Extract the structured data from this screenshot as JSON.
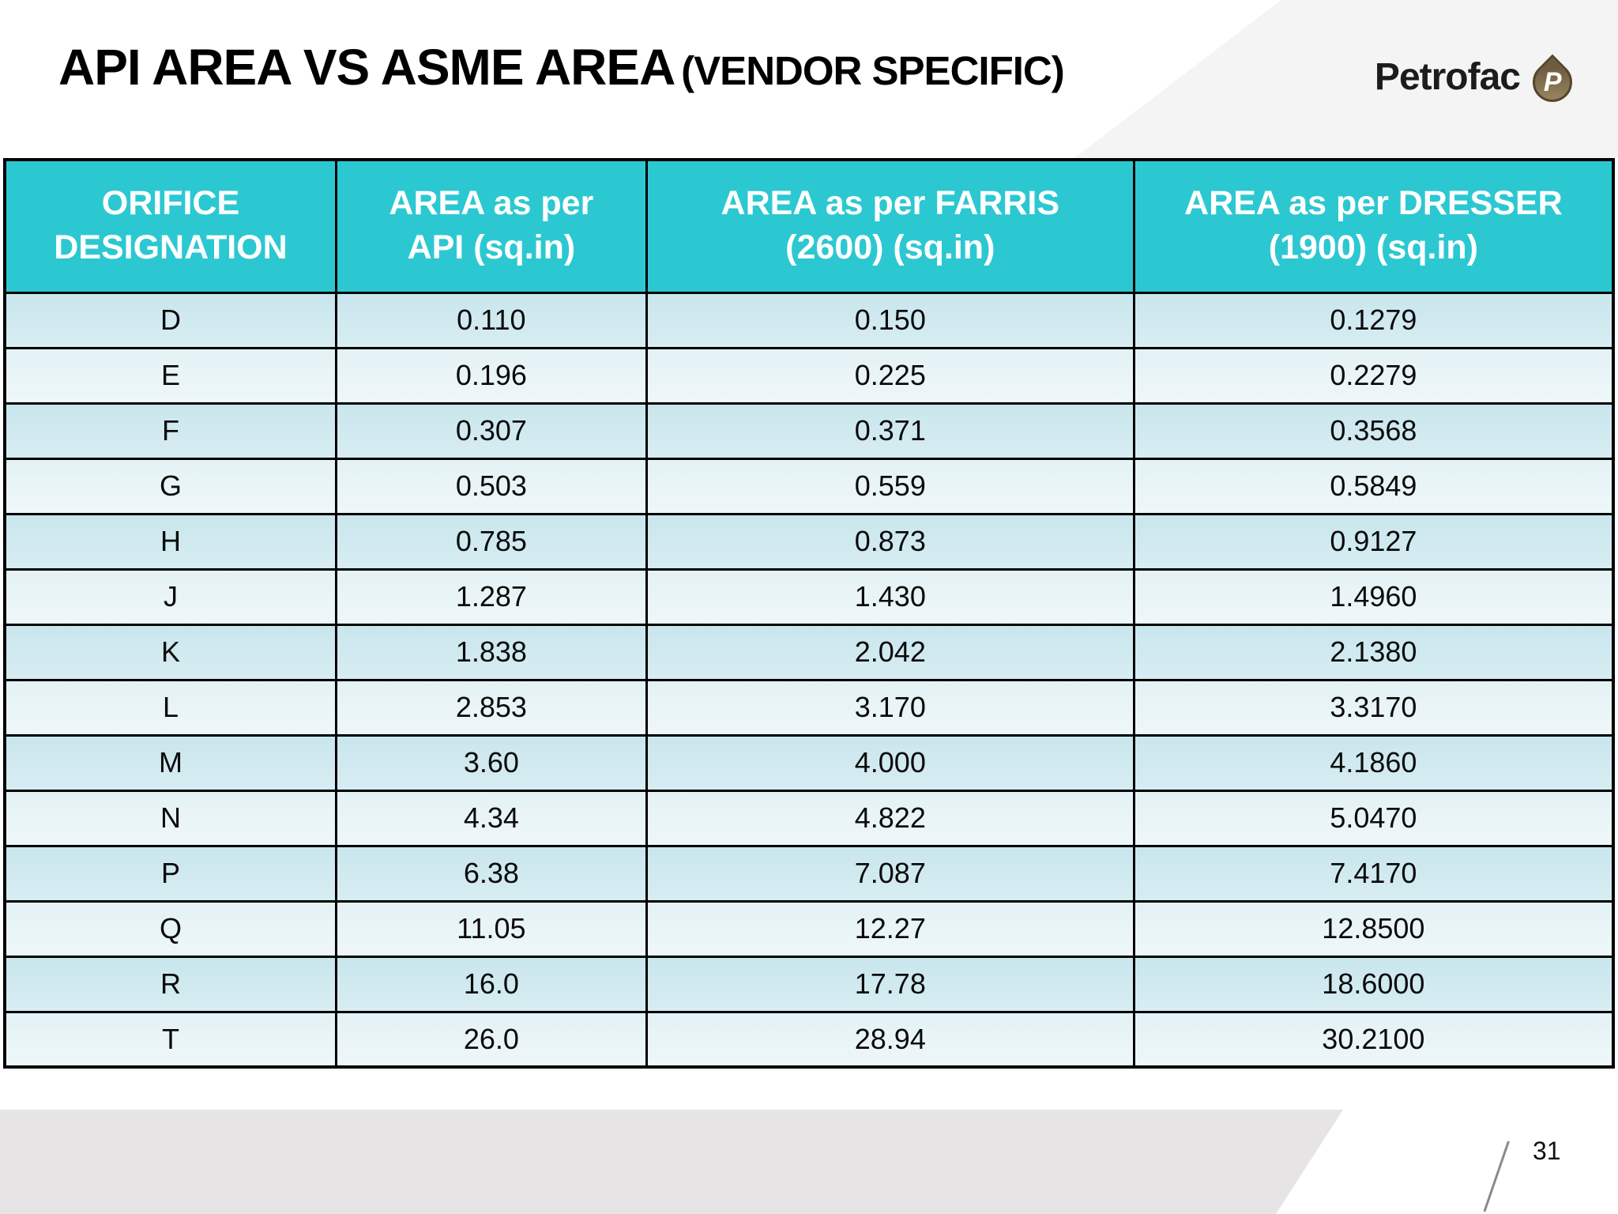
{
  "slide": {
    "title_main": "API AREA VS ASME AREA",
    "title_suffix": "(VENDOR SPECIFIC)",
    "page_number": "31",
    "logo": {
      "text": "Petrofac",
      "droplet_letter": "P"
    }
  },
  "colors": {
    "header_bg": "#2cc8d2",
    "row_dark": "#cde8ee",
    "row_light": "#e9f4f7",
    "border": "#000000",
    "band_gray": "#e6e4e4",
    "wedge_gray": "#f5f4f4",
    "droplet_brown": "#7a684a"
  },
  "table": {
    "headers": [
      [
        "ORIFICE",
        "DESIGNATION"
      ],
      [
        "AREA as per",
        "API (sq.in)"
      ],
      [
        "AREA as per FARRIS",
        "(2600) (sq.in)"
      ],
      [
        "AREA as per DRESSER",
        "(1900) (sq.in)"
      ]
    ],
    "rows": [
      [
        "D",
        "0.110",
        "0.150",
        "0.1279"
      ],
      [
        "E",
        "0.196",
        "0.225",
        "0.2279"
      ],
      [
        "F",
        "0.307",
        "0.371",
        "0.3568"
      ],
      [
        "G",
        "0.503",
        "0.559",
        "0.5849"
      ],
      [
        "H",
        "0.785",
        "0.873",
        "0.9127"
      ],
      [
        "J",
        "1.287",
        "1.430",
        "1.4960"
      ],
      [
        "K",
        "1.838",
        "2.042",
        "2.1380"
      ],
      [
        "L",
        "2.853",
        "3.170",
        "3.3170"
      ],
      [
        "M",
        "3.60",
        "4.000",
        "4.1860"
      ],
      [
        "N",
        "4.34",
        "4.822",
        "5.0470"
      ],
      [
        "P",
        "6.38",
        "7.087",
        "7.4170"
      ],
      [
        "Q",
        "11.05",
        "12.27",
        "12.8500"
      ],
      [
        "R",
        "16.0",
        "17.78",
        "18.6000"
      ],
      [
        "T",
        "26.0",
        "28.94",
        "30.2100"
      ]
    ]
  }
}
